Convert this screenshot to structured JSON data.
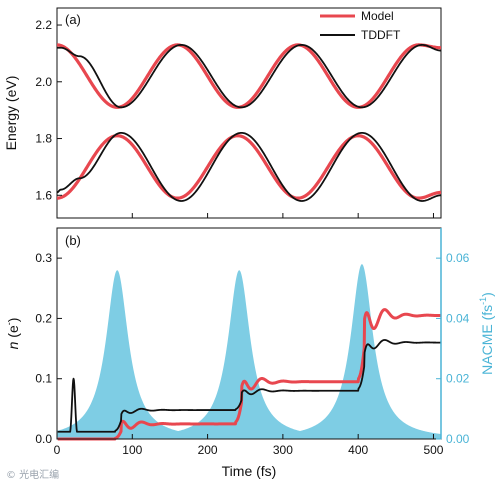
{
  "chart_data": [
    {
      "panel": "(a)",
      "type": "line",
      "ylabel": "Energy (eV)",
      "xlim": [
        0,
        510
      ],
      "ylim": [
        1.52,
        2.26
      ],
      "yticks": [
        1.6,
        1.8,
        2.0,
        2.2
      ],
      "legend_position": "top-right",
      "series": [
        {
          "name": "Model",
          "color": "#e8474f",
          "band": "upper",
          "x": [
            0,
            80,
            160,
            240,
            320,
            400,
            480,
            510
          ],
          "y": [
            2.13,
            1.91,
            2.13,
            1.91,
            2.13,
            1.91,
            2.13,
            2.12
          ]
        },
        {
          "name": "Model",
          "color": "#e8474f",
          "band": "lower",
          "x": [
            0,
            80,
            160,
            240,
            320,
            400,
            480,
            510
          ],
          "y": [
            1.59,
            1.81,
            1.59,
            1.81,
            1.59,
            1.81,
            1.59,
            1.61
          ]
        },
        {
          "name": "TDDFT",
          "color": "#111111",
          "band": "upper",
          "x": [
            0,
            5,
            30,
            85,
            165,
            245,
            325,
            405,
            485,
            510
          ],
          "y": [
            2.12,
            2.12,
            2.09,
            1.91,
            2.13,
            1.91,
            2.13,
            1.91,
            2.13,
            2.11
          ]
        },
        {
          "name": "TDDFT",
          "color": "#111111",
          "band": "lower",
          "x": [
            0,
            5,
            30,
            85,
            165,
            245,
            325,
            405,
            485,
            510
          ],
          "y": [
            1.61,
            1.62,
            1.66,
            1.82,
            1.58,
            1.82,
            1.58,
            1.82,
            1.58,
            1.6
          ]
        }
      ]
    },
    {
      "panel": "(b)",
      "type": "line",
      "xlabel": "Time (fs)",
      "ylabel": "n (e-)",
      "ylabel_parts": {
        "var": "n",
        "open": " (e",
        "sup": "-",
        "close": ")"
      },
      "y2label": "NACME (fs-1)",
      "y2label_parts": {
        "main": "NACME (fs",
        "sup": "-1",
        "close": ")"
      },
      "xlim": [
        0,
        510
      ],
      "ylim": [
        0,
        0.35
      ],
      "y2lim": [
        0,
        0.07
      ],
      "xticks": [
        0,
        100,
        200,
        300,
        400,
        500
      ],
      "yticks": [
        0.0,
        0.1,
        0.2,
        0.3
      ],
      "y2ticks": [
        0.0,
        0.02,
        0.04,
        0.06
      ],
      "series": [
        {
          "name": "NACME",
          "kind": "area",
          "axis": "right",
          "color": "#7ecde4",
          "peaks": [
            80,
            242,
            405
          ],
          "peak_values": [
            0.056,
            0.056,
            0.058
          ],
          "base_values": [
            0.0,
            0.0,
            0.0
          ]
        },
        {
          "name": "Model",
          "kind": "line",
          "axis": "left",
          "color": "#e8474f",
          "steps": [
            {
              "t": 85,
              "from": 0.0,
              "to": 0.025,
              "osc": 0.015
            },
            {
              "t": 245,
              "from": 0.025,
              "to": 0.095,
              "osc": 0.025
            },
            {
              "t": 408,
              "from": 0.095,
              "to": 0.205,
              "osc": 0.045
            }
          ]
        },
        {
          "name": "TDDFT",
          "kind": "line",
          "axis": "left",
          "color": "#111111",
          "spike": {
            "t": 22,
            "value": 0.1
          },
          "steps": [
            {
              "t": 85,
              "from": 0.012,
              "to": 0.048,
              "osc": 0.01
            },
            {
              "t": 245,
              "from": 0.048,
              "to": 0.08,
              "osc": 0.012
            },
            {
              "t": 408,
              "from": 0.08,
              "to": 0.16,
              "osc": 0.02
            }
          ]
        }
      ]
    }
  ],
  "watermark": "© 光电汇编"
}
